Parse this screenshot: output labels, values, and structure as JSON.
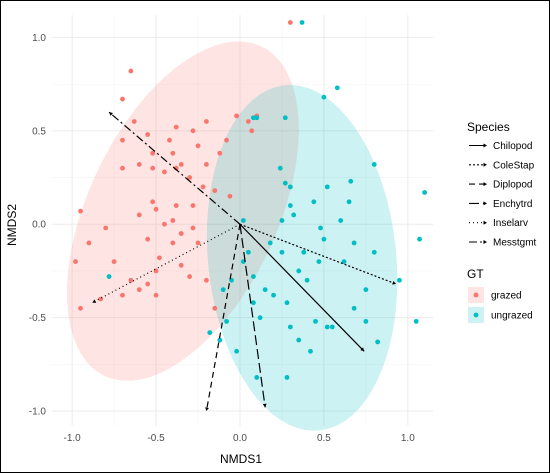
{
  "chart_data": {
    "type": "scatter",
    "xlabel": "NMDS1",
    "ylabel": "NMDS2",
    "xlim": [
      -1.12,
      1.15
    ],
    "ylim": [
      -1.08,
      1.12
    ],
    "xticks": [
      "-1.0",
      "-0.5",
      "0.0",
      "0.5",
      "1.0"
    ],
    "yticks": [
      "-1.0",
      "-0.5",
      "0.0",
      "0.5",
      "1.0"
    ],
    "grid": true,
    "colors": {
      "grazed": "#F8766D",
      "ungrazed": "#00BFC4",
      "arrows": "#000000"
    },
    "series": [
      {
        "name": "grazed",
        "points": [
          [
            -0.65,
            0.82
          ],
          [
            -0.7,
            0.67
          ],
          [
            -0.63,
            0.55
          ],
          [
            -0.7,
            0.45
          ],
          [
            -0.55,
            0.48
          ],
          [
            -0.52,
            0.38
          ],
          [
            -0.52,
            0.3
          ],
          [
            -0.7,
            0.3
          ],
          [
            -0.6,
            0.32
          ],
          [
            -0.42,
            0.45
          ],
          [
            -0.38,
            0.52
          ],
          [
            -0.28,
            0.5
          ],
          [
            -0.2,
            0.55
          ],
          [
            -0.25,
            0.42
          ],
          [
            -0.4,
            0.38
          ],
          [
            -0.35,
            0.32
          ],
          [
            -0.2,
            0.32
          ],
          [
            -0.3,
            0.25
          ],
          [
            -0.45,
            0.28
          ],
          [
            -0.38,
            0.3
          ],
          [
            -0.22,
            0.2
          ],
          [
            -0.15,
            0.18
          ],
          [
            -0.12,
            0.38
          ],
          [
            -0.08,
            0.45
          ],
          [
            -0.02,
            0.58
          ],
          [
            0.05,
            0.55
          ],
          [
            0.07,
            0.5
          ],
          [
            0.1,
            0.58
          ],
          [
            -0.06,
            0.15
          ],
          [
            -0.95,
            0.07
          ],
          [
            -0.9,
            -0.1
          ],
          [
            -0.8,
            -0.02
          ],
          [
            -0.75,
            -0.2
          ],
          [
            -0.65,
            -0.3
          ],
          [
            -0.98,
            -0.2
          ],
          [
            -0.95,
            -0.45
          ],
          [
            -0.83,
            -0.4
          ],
          [
            -0.7,
            -0.38
          ],
          [
            -0.6,
            -0.35
          ],
          [
            -0.55,
            -0.32
          ],
          [
            -0.5,
            -0.38
          ],
          [
            -0.5,
            -0.25
          ],
          [
            -0.48,
            -0.18
          ],
          [
            -0.4,
            -0.1
          ],
          [
            -0.35,
            -0.22
          ],
          [
            -0.3,
            -0.28
          ],
          [
            -0.25,
            -0.1
          ],
          [
            -0.35,
            -0.05
          ],
          [
            -0.4,
            0.02
          ],
          [
            -0.45,
            0.0
          ],
          [
            -0.6,
            0.05
          ],
          [
            -0.5,
            0.08
          ],
          [
            -0.38,
            0.1
          ],
          [
            -0.28,
            -0.02
          ],
          [
            -0.2,
            -0.3
          ],
          [
            -0.15,
            -0.45
          ],
          [
            0.3,
            1.08
          ],
          [
            -0.52,
            0.12
          ],
          [
            -0.28,
            0.1
          ],
          [
            -0.55,
            -0.08
          ]
        ]
      },
      {
        "name": "ungrazed",
        "points": [
          [
            0.37,
            1.08
          ],
          [
            0.5,
            0.68
          ],
          [
            0.58,
            0.73
          ],
          [
            0.27,
            0.57
          ],
          [
            0.1,
            0.57
          ],
          [
            0.08,
            0.57
          ],
          [
            0.24,
            0.3
          ],
          [
            0.27,
            0.22
          ],
          [
            0.3,
            0.2
          ],
          [
            0.52,
            0.2
          ],
          [
            0.66,
            0.23
          ],
          [
            0.8,
            0.32
          ],
          [
            0.65,
            0.12
          ],
          [
            0.44,
            0.12
          ],
          [
            0.3,
            0.1
          ],
          [
            0.25,
            0.02
          ],
          [
            0.32,
            0.05
          ],
          [
            0.6,
            0.02
          ],
          [
            0.68,
            -0.1
          ],
          [
            0.8,
            -0.15
          ],
          [
            1.1,
            0.17
          ],
          [
            1.07,
            -0.08
          ],
          [
            0.5,
            -0.08
          ],
          [
            0.48,
            -0.02
          ],
          [
            0.47,
            -0.2
          ],
          [
            0.38,
            -0.15
          ],
          [
            0.62,
            -0.2
          ],
          [
            0.75,
            -0.35
          ],
          [
            0.68,
            -0.45
          ],
          [
            0.75,
            -0.52
          ],
          [
            0.55,
            -0.55
          ],
          [
            0.52,
            -0.55
          ],
          [
            0.45,
            -0.52
          ],
          [
            0.4,
            -0.3
          ],
          [
            0.28,
            -0.42
          ],
          [
            0.15,
            -0.35
          ],
          [
            0.08,
            -0.28
          ],
          [
            0.02,
            -0.2
          ],
          [
            0.05,
            -0.15
          ],
          [
            0.08,
            -0.42
          ],
          [
            0.12,
            -0.5
          ],
          [
            -0.05,
            -0.3
          ],
          [
            -0.08,
            -0.52
          ],
          [
            -0.12,
            -0.62
          ],
          [
            -0.18,
            -0.58
          ],
          [
            -0.02,
            -0.68
          ],
          [
            0.3,
            -0.55
          ],
          [
            0.35,
            -0.62
          ],
          [
            0.42,
            -0.68
          ],
          [
            0.82,
            -0.63
          ],
          [
            1.05,
            -0.52
          ],
          [
            0.2,
            -0.38
          ],
          [
            0.25,
            -0.15
          ],
          [
            0.02,
            0.02
          ],
          [
            0.1,
            -0.82
          ],
          [
            0.28,
            -0.82
          ],
          [
            -0.78,
            -0.28
          ],
          [
            0.18,
            -0.1
          ],
          [
            0.35,
            -0.25
          ],
          [
            -0.1,
            -0.35
          ],
          [
            0.95,
            -0.3
          ]
        ]
      }
    ],
    "ellipses": [
      {
        "group": "grazed",
        "center": [
          -0.34,
          0.07
        ],
        "rx": 1.0,
        "ry": 0.55,
        "angle_deg": 60
      },
      {
        "group": "ungrazed",
        "center": [
          0.37,
          -0.18
        ],
        "rx": 0.93,
        "ry": 0.56,
        "angle_deg": 97
      }
    ],
    "arrows": [
      {
        "name": "Chilopod",
        "end": [
          0.74,
          -0.68
        ],
        "dash": ""
      },
      {
        "name": "ColeStap",
        "end": [
          0.93,
          -0.32
        ],
        "dash": "2,2"
      },
      {
        "name": "Diplopod",
        "end": [
          -0.2,
          -1.0
        ],
        "dash": "6,4"
      },
      {
        "name": "Enchytrd",
        "end": [
          0.15,
          -0.98
        ],
        "dash": "10,4"
      },
      {
        "name": "Inselarv",
        "end": [
          -0.88,
          -0.42
        ],
        "dash": "1,3"
      },
      {
        "name": "Messtgmt",
        "end": [
          -0.78,
          0.6
        ],
        "dash": "8,3,2,3"
      }
    ],
    "legends": [
      {
        "title": "Species",
        "kind": "linetype",
        "entries": [
          "Chilopod",
          "ColeStap",
          "Diplopod",
          "Enchytrd",
          "Inselarv",
          "Messtgmt"
        ]
      },
      {
        "title": "GT",
        "kind": "fill",
        "entries": [
          "grazed",
          "ungrazed"
        ]
      }
    ],
    "legend_placement": "right"
  }
}
